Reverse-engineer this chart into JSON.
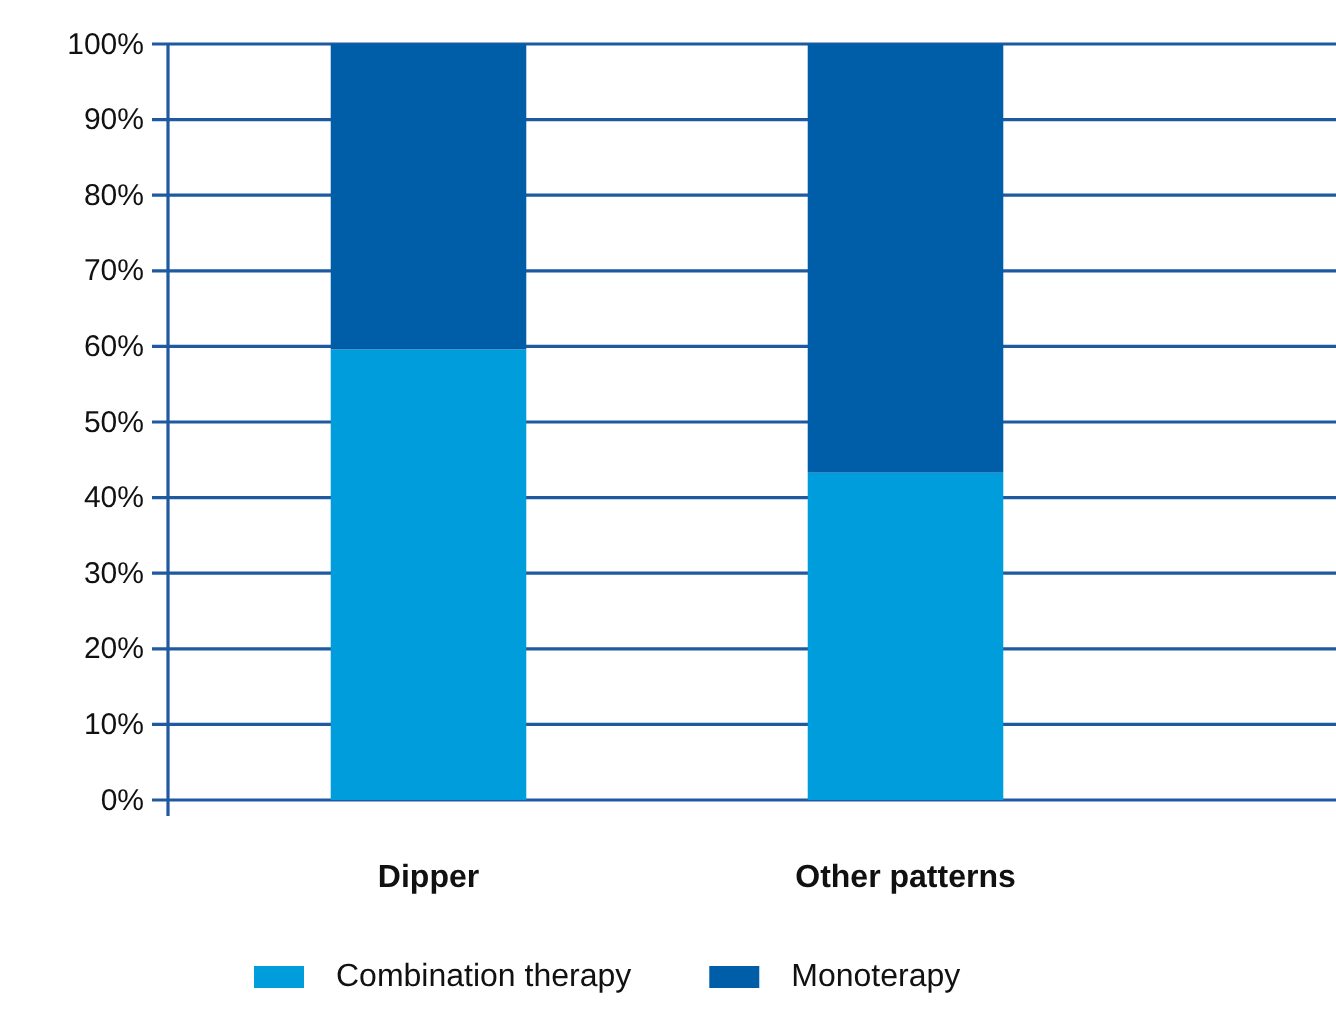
{
  "chart_data": {
    "type": "bar",
    "stacked": true,
    "categories": [
      "Dipper",
      "Other patterns"
    ],
    "series": [
      {
        "name": "Combination therapy",
        "color": "#009ddc",
        "values": [
          59.6,
          43.3
        ]
      },
      {
        "name": "Monoterapy",
        "color": "#005ea8",
        "values": [
          40.4,
          56.7
        ]
      }
    ],
    "ylim": [
      0,
      100
    ],
    "yticks": [
      {
        "value": 0,
        "label": "0%"
      },
      {
        "value": 10,
        "label": "10%"
      },
      {
        "value": 20,
        "label": "20%"
      },
      {
        "value": 30,
        "label": "30%"
      },
      {
        "value": 40,
        "label": "40%"
      },
      {
        "value": 50,
        "label": "50%"
      },
      {
        "value": 60,
        "label": "60%"
      },
      {
        "value": 70,
        "label": "70%"
      },
      {
        "value": 80,
        "label": "80%"
      },
      {
        "value": 90,
        "label": "90%"
      },
      {
        "value": 100,
        "label": "100%"
      }
    ],
    "grid": "y",
    "legend": "bottom"
  }
}
